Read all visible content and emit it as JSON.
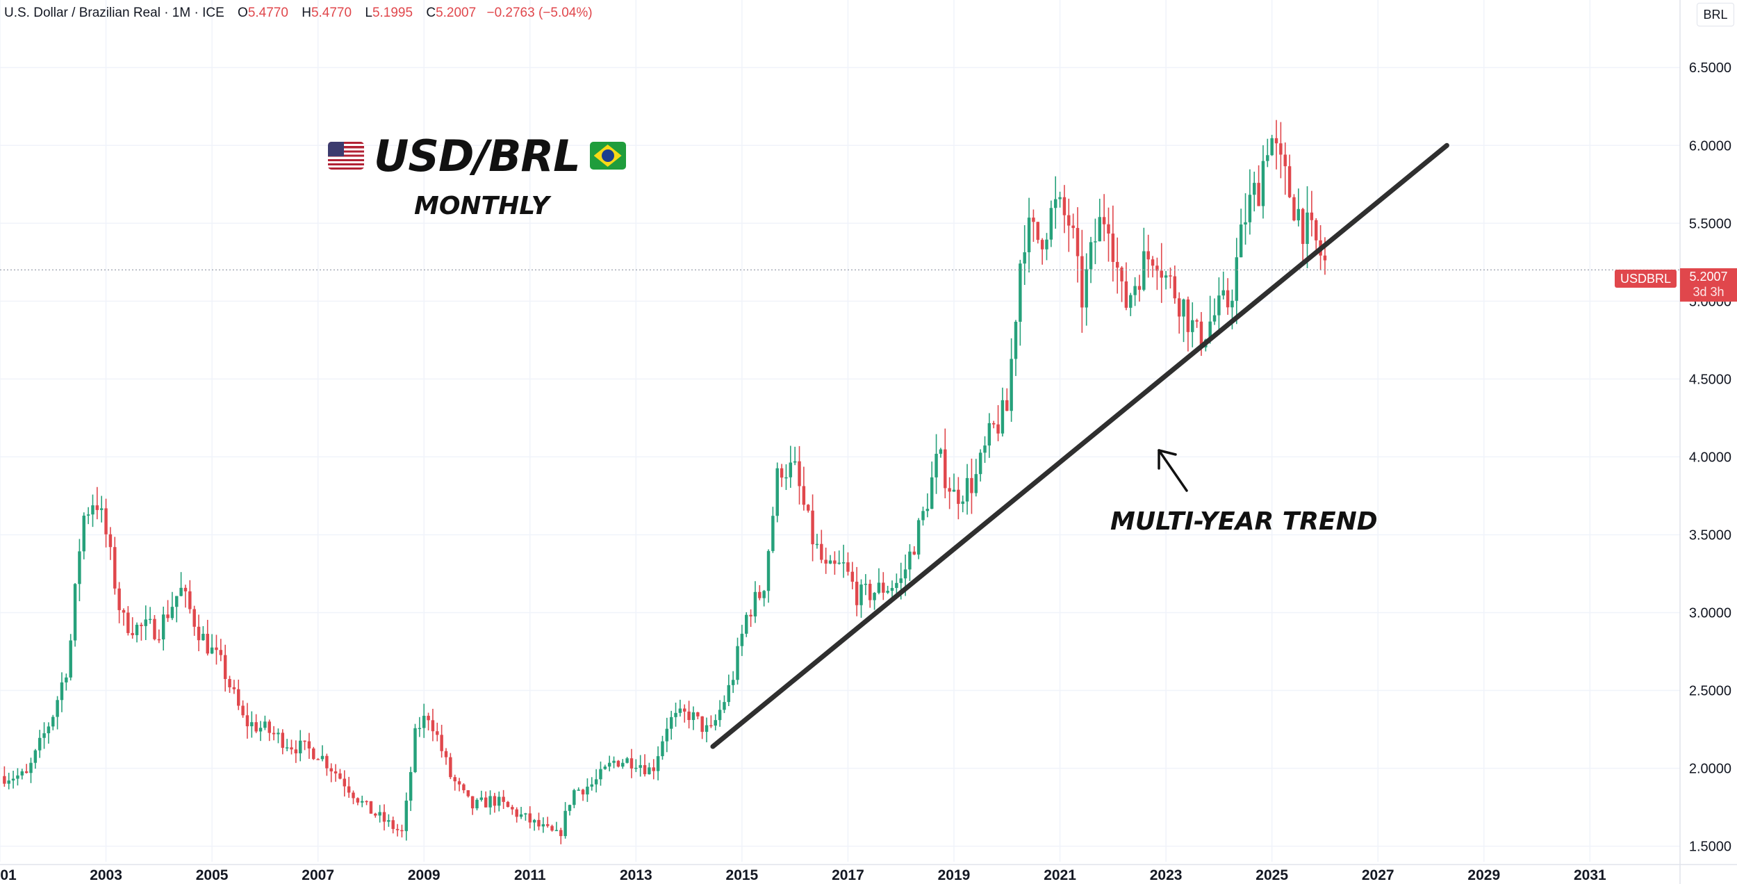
{
  "header": {
    "pair": "U.S. Dollar / Brazilian Real · 1M · ICE",
    "open_label": "O",
    "open_value": "5.4770",
    "high_label": "H",
    "high_value": "5.4770",
    "low_label": "L",
    "low_value": "5.1995",
    "close_label": "C",
    "close_value": "5.2007",
    "change": "−0.2763 (−5.04%)"
  },
  "currency_label": "BRL",
  "title": "USD/BRL",
  "subtitle": "MONTHLY",
  "annotation": "MULTI-YEAR TREND",
  "symbol_tag": "USDBRL",
  "price_tag": {
    "price": "5.2007",
    "countdown": "3d 3h"
  },
  "flags": {
    "left": "us-flag-icon",
    "right": "brazil-flag-icon"
  },
  "colors": {
    "up": "#26a17b",
    "down": "#e0474c",
    "trendline": "#2f2f2f",
    "grid": "#f0f3fa"
  },
  "chart_data": {
    "type": "candlestick",
    "x_tick_labels": [
      "01",
      "2003",
      "2005",
      "2007",
      "2009",
      "2011",
      "2013",
      "2015",
      "2017",
      "2019",
      "2021",
      "2023",
      "2025",
      "2027",
      "2029",
      "2031"
    ],
    "y_tick_labels": [
      "6.5000",
      "6.0000",
      "5.5000",
      "5.0000",
      "4.5000",
      "4.0000",
      "3.5000",
      "3.0000",
      "2.5000",
      "2.0000",
      "1.5000"
    ],
    "ylim": [
      1.4,
      6.8
    ],
    "xlim": [
      2001.0,
      2032.7
    ],
    "last_price": 5.2007,
    "trendline": {
      "start": [
        2014.45,
        2.14
      ],
      "end": [
        2028.3,
        6.0
      ]
    },
    "series": [
      {
        "x": 2001.5,
        "y": 1.95
      },
      {
        "x": 2002.0,
        "y": 2.35
      },
      {
        "x": 2002.3,
        "y": 2.7
      },
      {
        "x": 2002.55,
        "y": 3.6
      },
      {
        "x": 2002.8,
        "y": 3.75
      },
      {
        "x": 2003.0,
        "y": 3.5
      },
      {
        "x": 2003.3,
        "y": 2.95
      },
      {
        "x": 2003.6,
        "y": 2.9
      },
      {
        "x": 2004.0,
        "y": 2.9
      },
      {
        "x": 2004.4,
        "y": 3.15
      },
      {
        "x": 2004.8,
        "y": 2.85
      },
      {
        "x": 2005.2,
        "y": 2.65
      },
      {
        "x": 2005.6,
        "y": 2.3
      },
      {
        "x": 2006.0,
        "y": 2.25
      },
      {
        "x": 2006.5,
        "y": 2.15
      },
      {
        "x": 2007.0,
        "y": 2.1
      },
      {
        "x": 2007.4,
        "y": 1.95
      },
      {
        "x": 2007.9,
        "y": 1.75
      },
      {
        "x": 2008.3,
        "y": 1.65
      },
      {
        "x": 2008.6,
        "y": 1.58
      },
      {
        "x": 2008.85,
        "y": 2.25
      },
      {
        "x": 2009.1,
        "y": 2.35
      },
      {
        "x": 2009.5,
        "y": 1.95
      },
      {
        "x": 2009.9,
        "y": 1.75
      },
      {
        "x": 2010.3,
        "y": 1.8
      },
      {
        "x": 2010.8,
        "y": 1.7
      },
      {
        "x": 2011.2,
        "y": 1.62
      },
      {
        "x": 2011.55,
        "y": 1.56
      },
      {
        "x": 2011.8,
        "y": 1.85
      },
      {
        "x": 2012.2,
        "y": 1.9
      },
      {
        "x": 2012.6,
        "y": 2.05
      },
      {
        "x": 2013.0,
        "y": 2.05
      },
      {
        "x": 2013.3,
        "y": 1.98
      },
      {
        "x": 2013.6,
        "y": 2.3
      },
      {
        "x": 2014.0,
        "y": 2.35
      },
      {
        "x": 2014.4,
        "y": 2.22
      },
      {
        "x": 2014.8,
        "y": 2.55
      },
      {
        "x": 2015.1,
        "y": 3.0
      },
      {
        "x": 2015.4,
        "y": 3.15
      },
      {
        "x": 2015.7,
        "y": 3.95
      },
      {
        "x": 2016.0,
        "y": 3.9
      },
      {
        "x": 2016.3,
        "y": 3.5
      },
      {
        "x": 2016.6,
        "y": 3.25
      },
      {
        "x": 2016.9,
        "y": 3.3
      },
      {
        "x": 2017.2,
        "y": 3.1
      },
      {
        "x": 2017.6,
        "y": 3.15
      },
      {
        "x": 2018.0,
        "y": 3.2
      },
      {
        "x": 2018.4,
        "y": 3.6
      },
      {
        "x": 2018.7,
        "y": 4.0
      },
      {
        "x": 2019.0,
        "y": 3.75
      },
      {
        "x": 2019.4,
        "y": 3.85
      },
      {
        "x": 2019.7,
        "y": 4.15
      },
      {
        "x": 2020.0,
        "y": 4.3
      },
      {
        "x": 2020.3,
        "y": 5.45
      },
      {
        "x": 2020.6,
        "y": 5.4
      },
      {
        "x": 2020.9,
        "y": 5.6
      },
      {
        "x": 2021.2,
        "y": 5.5
      },
      {
        "x": 2021.4,
        "y": 5.0
      },
      {
        "x": 2021.7,
        "y": 5.45
      },
      {
        "x": 2021.9,
        "y": 5.6
      },
      {
        "x": 2022.2,
        "y": 4.95
      },
      {
        "x": 2022.5,
        "y": 5.2
      },
      {
        "x": 2022.8,
        "y": 5.35
      },
      {
        "x": 2023.0,
        "y": 5.15
      },
      {
        "x": 2023.3,
        "y": 5.0
      },
      {
        "x": 2023.6,
        "y": 4.75
      },
      {
        "x": 2023.9,
        "y": 4.9
      },
      {
        "x": 2024.2,
        "y": 5.0
      },
      {
        "x": 2024.5,
        "y": 5.55
      },
      {
        "x": 2024.75,
        "y": 5.75
      },
      {
        "x": 2024.95,
        "y": 6.1
      },
      {
        "x": 2025.15,
        "y": 5.85
      },
      {
        "x": 2025.4,
        "y": 5.65
      },
      {
        "x": 2025.65,
        "y": 5.45
      },
      {
        "x": 2025.85,
        "y": 5.35
      },
      {
        "x": 2026.05,
        "y": 5.2
      }
    ]
  }
}
